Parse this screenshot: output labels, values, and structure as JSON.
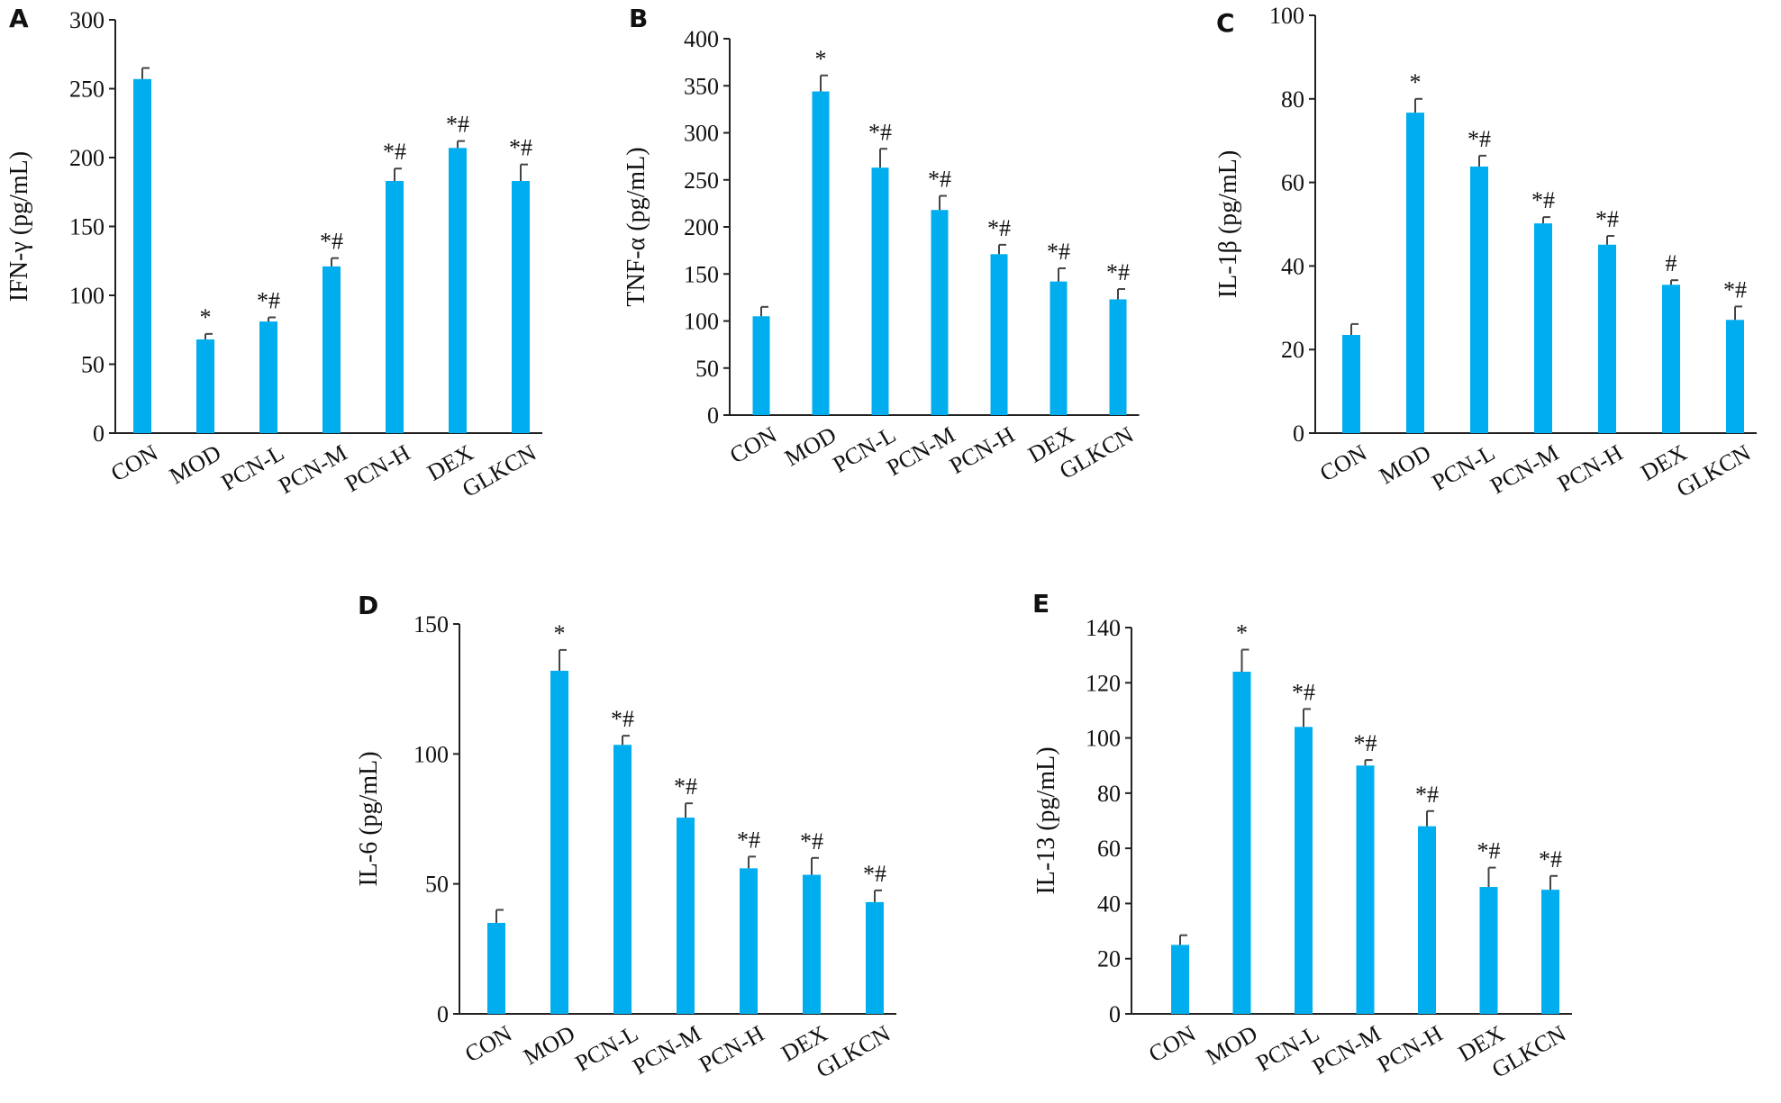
{
  "colors": {
    "bar": "#00aeef",
    "axis": "#222222",
    "text": "#111111"
  },
  "chart_data": [
    {
      "type": "bar",
      "letter": "A",
      "ylabel": "IFN-γ (pg/mL)",
      "ylim": [
        0,
        300
      ],
      "ticks": [
        0,
        50,
        100,
        150,
        200,
        250,
        300
      ],
      "categories": [
        "CON",
        "MOD",
        "PCN-L",
        "PCN-M",
        "PCN-H",
        "DEX",
        "GLKCN"
      ],
      "values": [
        257,
        68,
        81,
        121,
        183,
        207,
        183
      ],
      "errors": [
        8,
        4,
        3,
        6,
        9,
        5,
        12
      ],
      "significance": [
        "",
        "*",
        "*#",
        "*#",
        "*#",
        "*#",
        "*#"
      ]
    },
    {
      "type": "bar",
      "letter": "B",
      "ylabel": "TNF-α (pg/mL)",
      "ylim": [
        0,
        400
      ],
      "ticks": [
        0,
        50,
        100,
        150,
        200,
        250,
        300,
        350,
        400
      ],
      "categories": [
        "CON",
        "MOD",
        "PCN-L",
        "PCN-M",
        "PCN-H",
        "DEX",
        "GLKCN"
      ],
      "values": [
        105,
        344,
        263,
        218,
        171,
        142,
        123
      ],
      "errors": [
        10,
        17,
        20,
        15,
        10,
        14,
        11
      ],
      "significance": [
        "",
        "*",
        "*#",
        "*#",
        "*#",
        "*#",
        "*#"
      ]
    },
    {
      "type": "bar",
      "letter": "C",
      "ylabel": "IL-1β (pg/mL)",
      "ylim": [
        0,
        100
      ],
      "ticks": [
        0,
        20,
        40,
        60,
        80,
        100
      ],
      "categories": [
        "CON",
        "MOD",
        "PCN-L",
        "PCN-M",
        "PCN-H",
        "DEX",
        "GLKCN"
      ],
      "values": [
        23.5,
        76.7,
        63.8,
        50.2,
        45.1,
        35.5,
        27.1
      ],
      "errors": [
        2.6,
        3.3,
        2.6,
        1.5,
        2.1,
        1.1,
        3.2
      ],
      "significance": [
        "",
        "*",
        "*#",
        "*#",
        "*#",
        "#",
        "*#"
      ]
    },
    {
      "type": "bar",
      "letter": "D",
      "ylabel": "IL-6 (pg/mL)",
      "ylim": [
        0,
        150
      ],
      "ticks": [
        0,
        50,
        100,
        150
      ],
      "categories": [
        "CON",
        "MOD",
        "PCN-L",
        "PCN-M",
        "PCN-H",
        "DEX",
        "GLKCN"
      ],
      "values": [
        35,
        132,
        103.5,
        75.5,
        56,
        53.5,
        43
      ],
      "errors": [
        5,
        8,
        3.5,
        5.5,
        4.5,
        6.5,
        4.5
      ],
      "significance": [
        "",
        "*",
        "*#",
        "*#",
        "*#",
        "*#",
        "*#"
      ]
    },
    {
      "type": "bar",
      "letter": "E",
      "ylabel": "IL-13  (pg/mL)",
      "ylim": [
        0,
        140
      ],
      "ticks": [
        0,
        20,
        40,
        60,
        80,
        100,
        120,
        140
      ],
      "categories": [
        "CON",
        "MOD",
        "PCN-L",
        "PCN-M",
        "PCN-H",
        "DEX",
        "GLKCN"
      ],
      "values": [
        25,
        124,
        104,
        90,
        68,
        46,
        45
      ],
      "errors": [
        3.5,
        8,
        6.5,
        2,
        5.5,
        7,
        5
      ],
      "significance": [
        "",
        "*",
        "*#",
        "*#",
        "*#",
        "*#",
        "*#"
      ]
    }
  ]
}
